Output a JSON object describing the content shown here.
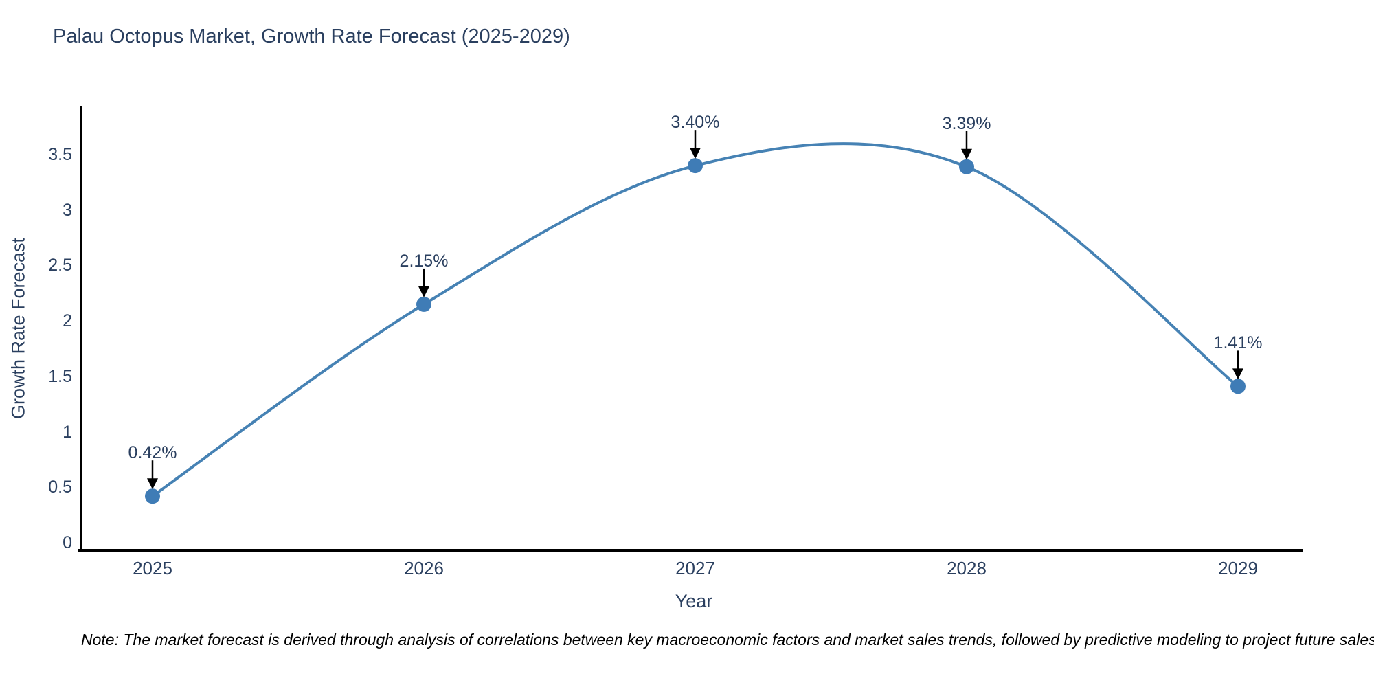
{
  "chart_data": {
    "type": "line",
    "title": "Palau Octopus Market, Growth Rate Forecast (2025-2029)",
    "xlabel": "Year",
    "ylabel": "Growth Rate Forecast",
    "x": [
      2025,
      2026,
      2027,
      2028,
      2029
    ],
    "x_tick_labels": [
      "2025",
      "2026",
      "2027",
      "2028",
      "2029"
    ],
    "series": [
      {
        "name": "Growth Rate Forecast",
        "values": [
          0.42,
          2.15,
          3.4,
          3.39,
          1.41
        ],
        "point_labels": [
          "0.42%",
          "2.15%",
          "3.40%",
          "3.39%",
          "1.41%"
        ]
      }
    ],
    "yticks": [
      0,
      0.5,
      1,
      1.5,
      2,
      2.5,
      3,
      3.5
    ],
    "ytick_labels": [
      "0",
      "0.5",
      "1",
      "1.5",
      "2",
      "2.5",
      "3",
      "3.5"
    ],
    "ylim": [
      0,
      3.93
    ],
    "line_shape": "spline",
    "grid": false,
    "legend_position": "none",
    "colors": {
      "line": "#4682b4",
      "marker": "#3f7cb6",
      "axis": "#000000",
      "text": "#2a3f5f",
      "annotation_arrow": "#000000"
    }
  },
  "note": "Note: The market forecast is derived through analysis of correlations between key macroeconomic factors and market sales trends, followed by predictive modeling to project future sales"
}
